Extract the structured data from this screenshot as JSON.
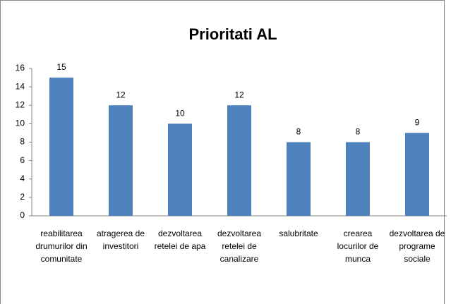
{
  "chart_data": {
    "type": "bar",
    "title": "Prioritati AL",
    "categories": [
      "reabilitarea drumurilor din comunitate",
      "atragerea de investitori",
      "dezvoltarea retelei de apa",
      "dezvoltarea retelei de canalizare",
      "salubritate",
      "crearea locurilor de munca",
      "dezvoltarea de programe sociale"
    ],
    "values": [
      15,
      12,
      10,
      12,
      8,
      8,
      9
    ],
    "color": "#4f81bd",
    "ylim": [
      0,
      16
    ],
    "yticks": [
      0,
      2,
      4,
      6,
      8,
      10,
      12,
      14,
      16
    ],
    "grid": false
  }
}
